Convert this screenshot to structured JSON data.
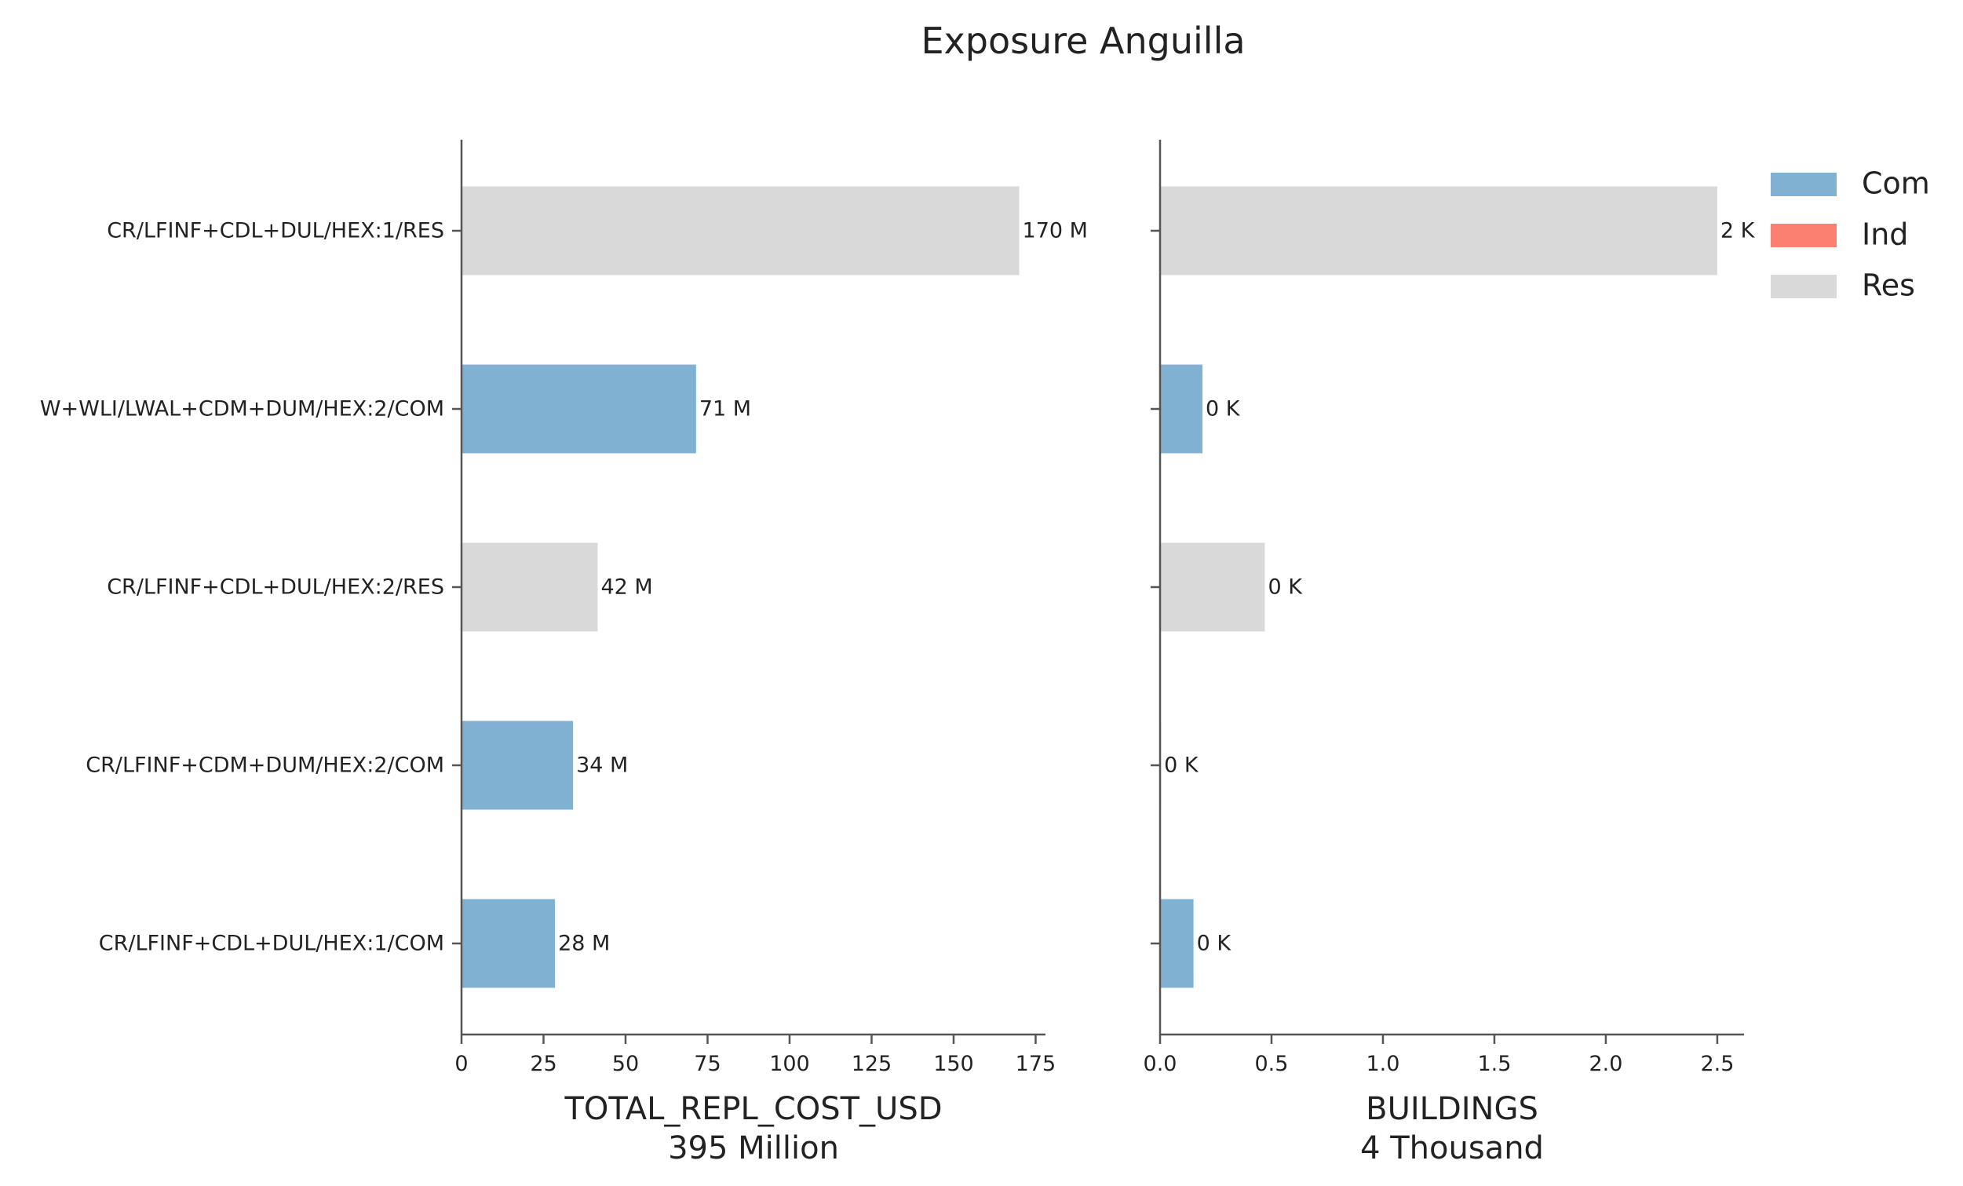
{
  "chart_data": {
    "type": "bar",
    "orientation": "horizontal",
    "title": "Exposure Anguilla",
    "categories": [
      "CR/LFINF+CDL+DUL/HEX:1/RES",
      "W+WLI/LWAL+CDM+DUM/HEX:2/COM",
      "CR/LFINF+CDL+DUL/HEX:2/RES",
      "CR/LFINF+CDM+DUM/HEX:2/COM",
      "CR/LFINF+CDL+DUL/HEX:1/COM"
    ],
    "category_group": [
      "Res",
      "Com",
      "Res",
      "Com",
      "Com"
    ],
    "legend": {
      "placement": "top-right",
      "entries": [
        {
          "name": "Com",
          "color": "#80b1d3"
        },
        {
          "name": "Ind",
          "color": "#fb8072"
        },
        {
          "name": "Res",
          "color": "#d9d9d9"
        }
      ]
    },
    "panels": [
      {
        "xlabel": "TOTAL_REPL_COST_USD",
        "total_label": "395 Million",
        "values": [
          170,
          71.5,
          41.5,
          34,
          28.5
        ],
        "value_labels": [
          "170 M",
          "71 M",
          "42 M",
          "34 M",
          "28 M"
        ],
        "xlim": [
          0,
          178
        ],
        "ticks": [
          0,
          25,
          50,
          75,
          100,
          125,
          150,
          175
        ],
        "tick_labels": [
          "0",
          "25",
          "50",
          "75",
          "100",
          "125",
          "150",
          "175"
        ]
      },
      {
        "xlabel": "BUILDINGS",
        "total_label": "4 Thousand",
        "values": [
          2.5,
          0.19,
          0.47,
          0.004,
          0.15
        ],
        "value_labels": [
          "2 K",
          "0 K",
          "0 K",
          "0 K",
          "0 K"
        ],
        "xlim": [
          0,
          2.62
        ],
        "ticks": [
          0,
          0.5,
          1.0,
          1.5,
          2.0,
          2.5
        ],
        "tick_labels": [
          "0.0",
          "0.5",
          "1.0",
          "1.5",
          "2.0",
          "2.5"
        ]
      }
    ]
  }
}
